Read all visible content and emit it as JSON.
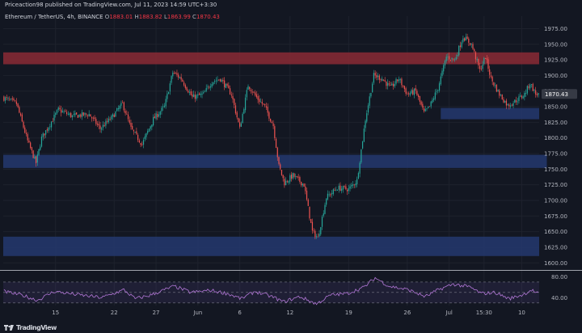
{
  "header": {
    "published": "Priceaction98 published on TradingView.com, Jul 11, 2023 14:59 UTC+3:30",
    "symbol": "Ethereum / TetherUS, 4h, BINANCE",
    "open_label": "O",
    "open": "1883.01",
    "high_label": "H",
    "high": "1883.82",
    "low_label": "L",
    "low": "1863.99",
    "close_label": "C",
    "close": "1870.43"
  },
  "footer": {
    "brand": "TradingView",
    "logo_icon": "tradingview-logo-icon"
  },
  "colors": {
    "background": "#131722",
    "up": "#26a69a",
    "down": "#ef5350",
    "resistance_zone": "#8b2a35",
    "support_zone": "#24386f",
    "rsi_line": "#b277d6",
    "price_label_bg": "#363a45"
  },
  "chart_data": [
    {
      "type": "candlestick",
      "title": "",
      "ylim": [
        1590,
        1995
      ],
      "grid": true,
      "y_ticks": [
        "1600.00",
        "1625.00",
        "1650.00",
        "1675.00",
        "1700.00",
        "1725.00",
        "1750.00",
        "1775.00",
        "1800.00",
        "1825.00",
        "1850.00",
        "1875.00",
        "1900.00",
        "1925.00",
        "1950.00",
        "1975.00"
      ],
      "x_ticks": [
        {
          "label": "15",
          "bar": 37
        },
        {
          "label": "22",
          "bar": 79
        },
        {
          "label": "27",
          "bar": 109
        },
        {
          "label": "Jun",
          "bar": 139
        },
        {
          "label": "6",
          "bar": 169
        },
        {
          "label": "12",
          "bar": 205
        },
        {
          "label": "19",
          "bar": 247
        },
        {
          "label": "26",
          "bar": 289
        },
        {
          "label": "Jul",
          "bar": 319
        },
        {
          "label": "15:30",
          "bar": 344
        },
        {
          "label": "10",
          "bar": 371
        }
      ],
      "last_price": "1870.43",
      "zones": [
        {
          "kind": "resistance",
          "from": 1918,
          "to": 1937
        },
        {
          "kind": "support",
          "from": 1752,
          "to": 1773,
          "end_bar": 389
        },
        {
          "kind": "support",
          "from": 1830,
          "to": 1848,
          "start_bar": 313
        },
        {
          "kind": "support",
          "from": 1611,
          "to": 1642
        }
      ],
      "anchors": [
        {
          "bar": 0,
          "price": 1865
        },
        {
          "bar": 10,
          "price": 1855
        },
        {
          "bar": 18,
          "price": 1795
        },
        {
          "bar": 24,
          "price": 1760
        },
        {
          "bar": 28,
          "price": 1800
        },
        {
          "bar": 40,
          "price": 1845
        },
        {
          "bar": 50,
          "price": 1835
        },
        {
          "bar": 62,
          "price": 1838
        },
        {
          "bar": 70,
          "price": 1815
        },
        {
          "bar": 78,
          "price": 1832
        },
        {
          "bar": 86,
          "price": 1855
        },
        {
          "bar": 92,
          "price": 1815
        },
        {
          "bar": 100,
          "price": 1790
        },
        {
          "bar": 108,
          "price": 1830
        },
        {
          "bar": 116,
          "price": 1850
        },
        {
          "bar": 122,
          "price": 1905
        },
        {
          "bar": 128,
          "price": 1895
        },
        {
          "bar": 136,
          "price": 1865
        },
        {
          "bar": 144,
          "price": 1870
        },
        {
          "bar": 150,
          "price": 1890
        },
        {
          "bar": 156,
          "price": 1895
        },
        {
          "bar": 164,
          "price": 1870
        },
        {
          "bar": 170,
          "price": 1815
        },
        {
          "bar": 176,
          "price": 1885
        },
        {
          "bar": 182,
          "price": 1865
        },
        {
          "bar": 188,
          "price": 1850
        },
        {
          "bar": 194,
          "price": 1820
        },
        {
          "bar": 198,
          "price": 1755
        },
        {
          "bar": 202,
          "price": 1728
        },
        {
          "bar": 208,
          "price": 1740
        },
        {
          "bar": 216,
          "price": 1725
        },
        {
          "bar": 222,
          "price": 1650
        },
        {
          "bar": 226,
          "price": 1640
        },
        {
          "bar": 232,
          "price": 1705
        },
        {
          "bar": 240,
          "price": 1720
        },
        {
          "bar": 248,
          "price": 1718
        },
        {
          "bar": 254,
          "price": 1732
        },
        {
          "bar": 260,
          "price": 1830
        },
        {
          "bar": 266,
          "price": 1900
        },
        {
          "bar": 272,
          "price": 1895
        },
        {
          "bar": 278,
          "price": 1880
        },
        {
          "bar": 284,
          "price": 1895
        },
        {
          "bar": 290,
          "price": 1870
        },
        {
          "bar": 296,
          "price": 1875
        },
        {
          "bar": 302,
          "price": 1840
        },
        {
          "bar": 306,
          "price": 1850
        },
        {
          "bar": 312,
          "price": 1880
        },
        {
          "bar": 318,
          "price": 1930
        },
        {
          "bar": 324,
          "price": 1925
        },
        {
          "bar": 330,
          "price": 1962
        },
        {
          "bar": 336,
          "price": 1950
        },
        {
          "bar": 342,
          "price": 1908
        },
        {
          "bar": 346,
          "price": 1930
        },
        {
          "bar": 350,
          "price": 1895
        },
        {
          "bar": 356,
          "price": 1870
        },
        {
          "bar": 362,
          "price": 1852
        },
        {
          "bar": 368,
          "price": 1860
        },
        {
          "bar": 374,
          "price": 1870
        },
        {
          "bar": 378,
          "price": 1888
        },
        {
          "bar": 382,
          "price": 1870
        }
      ]
    },
    {
      "type": "line",
      "title": "",
      "ylim": [
        25,
        90
      ],
      "y_ticks": [
        "80.00",
        "40.00"
      ],
      "overbought": 70,
      "oversold": 30,
      "anchors": [
        {
          "bar": 0,
          "value": 52
        },
        {
          "bar": 14,
          "value": 44
        },
        {
          "bar": 24,
          "value": 35
        },
        {
          "bar": 36,
          "value": 52
        },
        {
          "bar": 52,
          "value": 46
        },
        {
          "bar": 70,
          "value": 40
        },
        {
          "bar": 86,
          "value": 55
        },
        {
          "bar": 94,
          "value": 38
        },
        {
          "bar": 104,
          "value": 44
        },
        {
          "bar": 122,
          "value": 62
        },
        {
          "bar": 134,
          "value": 50
        },
        {
          "bar": 148,
          "value": 54
        },
        {
          "bar": 160,
          "value": 48
        },
        {
          "bar": 170,
          "value": 38
        },
        {
          "bar": 180,
          "value": 52
        },
        {
          "bar": 194,
          "value": 40
        },
        {
          "bar": 200,
          "value": 32
        },
        {
          "bar": 212,
          "value": 42
        },
        {
          "bar": 224,
          "value": 28
        },
        {
          "bar": 234,
          "value": 45
        },
        {
          "bar": 246,
          "value": 48
        },
        {
          "bar": 258,
          "value": 60
        },
        {
          "bar": 266,
          "value": 78
        },
        {
          "bar": 276,
          "value": 62
        },
        {
          "bar": 290,
          "value": 55
        },
        {
          "bar": 302,
          "value": 42
        },
        {
          "bar": 312,
          "value": 56
        },
        {
          "bar": 322,
          "value": 66
        },
        {
          "bar": 334,
          "value": 60
        },
        {
          "bar": 342,
          "value": 48
        },
        {
          "bar": 352,
          "value": 50
        },
        {
          "bar": 362,
          "value": 38
        },
        {
          "bar": 372,
          "value": 46
        },
        {
          "bar": 378,
          "value": 55
        },
        {
          "bar": 382,
          "value": 48
        }
      ]
    }
  ]
}
